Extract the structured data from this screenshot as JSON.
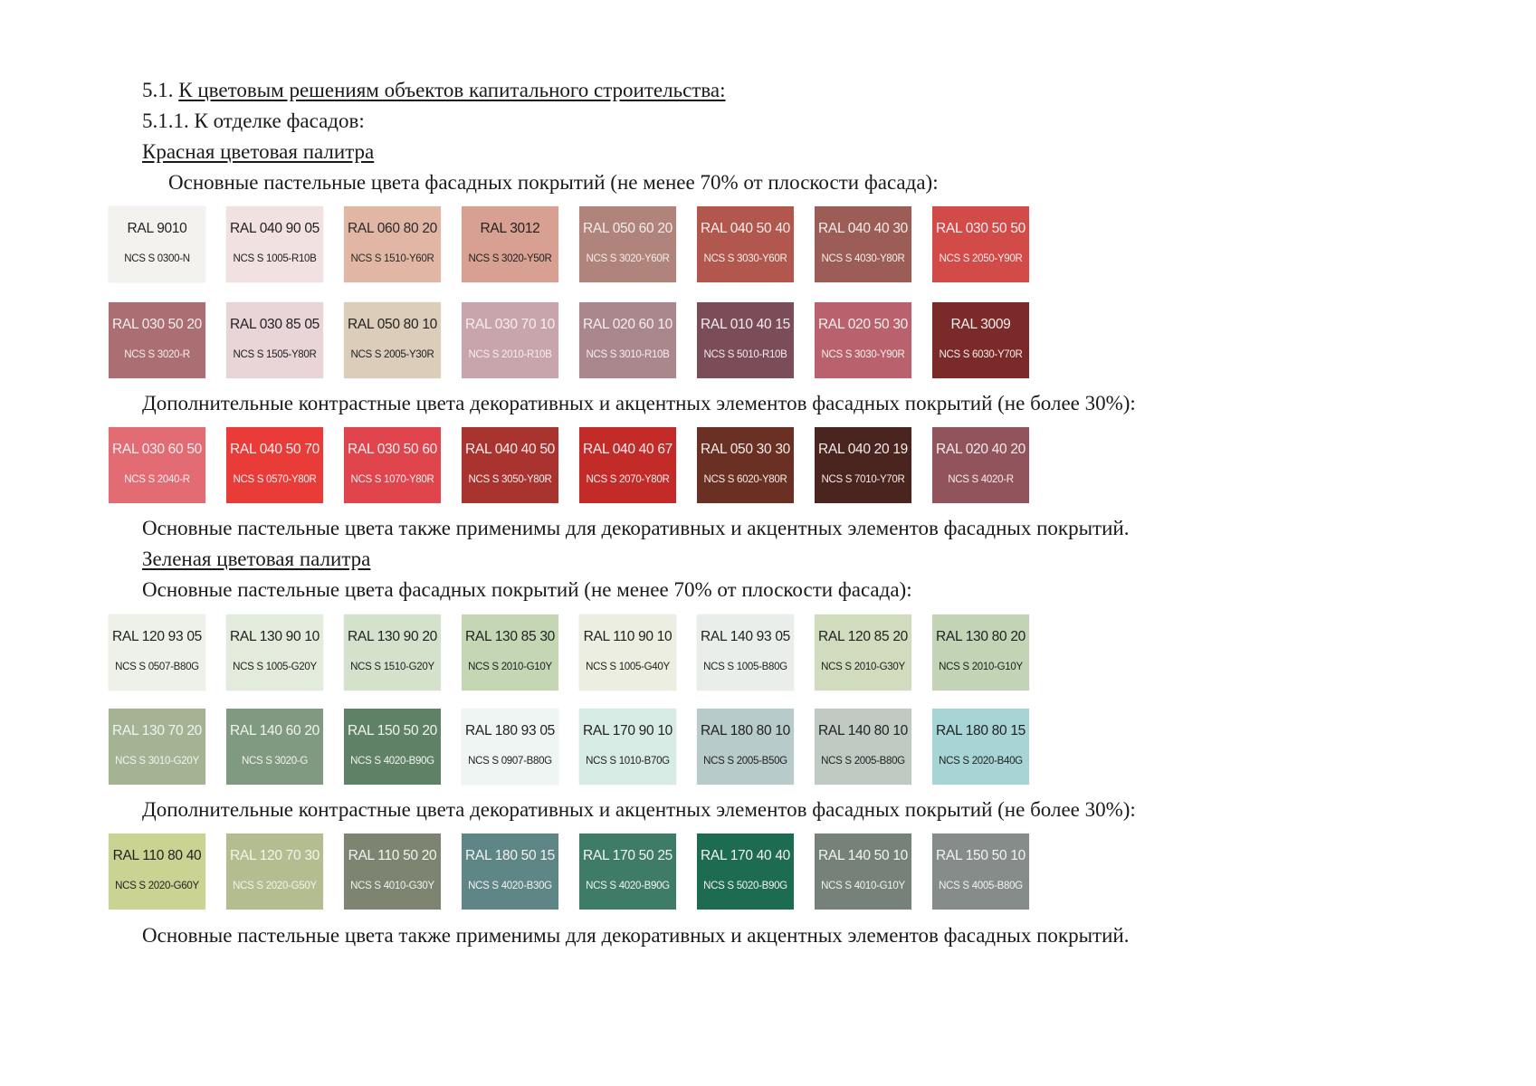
{
  "heading": {
    "num": "5.1.",
    "title": "К цветовым решениям объектов капитального строительства:"
  },
  "subheading": "5.1.1. К отделке фасадов:",
  "red": {
    "title": "Красная цветовая палитра",
    "main_text": "Основные пастельные цвета фасадных покрытий (не менее 70% от плоскости фасада):",
    "extra_text": "Дополнительные контрастные цвета декоративных и акцентных элементов фасадных покрытий (не более 30%):",
    "note": "Основные пастельные цвета также применимы для декоративных и акцентных элементов фасадных покрытий.",
    "rows": [
      [
        {
          "ral": "RAL 9010",
          "ncs": "NCS S 0300-N",
          "color": "#f3f2ef",
          "text": "#222222"
        },
        {
          "ral": "RAL 040 90 05",
          "ncs": "NCS S 1005-R10B",
          "color": "#f1e1e1",
          "text": "#222222"
        },
        {
          "ral": "RAL 060 80 20",
          "ncs": "NCS S 1510-Y60R",
          "color": "#e2b6a4",
          "text": "#2a2a2a"
        },
        {
          "ral": "RAL 3012",
          "ncs": "NCS S 3020-Y50R",
          "color": "#d8a092",
          "text": "#222222"
        },
        {
          "ral": "RAL 050 60 20",
          "ncs": "NCS S 3020-Y60R",
          "color": "#b0837b",
          "text": "#f4ecea"
        },
        {
          "ral": "RAL 040 50 40",
          "ncs": "NCS S 3030-Y60R",
          "color": "#b2574e",
          "text": "#f6eeec"
        },
        {
          "ral": "RAL 040 40 30",
          "ncs": "NCS S 4030-Y80R",
          "color": "#9b5d55",
          "text": "#f6eeec"
        },
        {
          "ral": "RAL 030 50 50",
          "ncs": "NCS S 2050-Y90R",
          "color": "#d24b48",
          "text": "#f8eeee"
        }
      ],
      [
        {
          "ral": "RAL 030 50 20",
          "ncs": "NCS S 3020-R",
          "color": "#ab6e72",
          "text": "#f6eeee"
        },
        {
          "ral": "RAL 030 85 05",
          "ncs": "NCS S 1505-Y80R",
          "color": "#e9d5d8",
          "text": "#222222"
        },
        {
          "ral": "RAL 050 80 10",
          "ncs": "NCS S 2005-Y30R",
          "color": "#dccdbb",
          "text": "#222222"
        },
        {
          "ral": "RAL 030 70 10",
          "ncs": "NCS S 2010-R10B",
          "color": "#c8a4ac",
          "text": "#f6eeee"
        },
        {
          "ral": "RAL 020 60 10",
          "ncs": "NCS S 3010-R10B",
          "color": "#a9878d",
          "text": "#f6eeee"
        },
        {
          "ral": "RAL 010 40 15",
          "ncs": "NCS S 5010-R10B",
          "color": "#7a4d59",
          "text": "#f4ecee"
        },
        {
          "ral": "RAL 020 50 30",
          "ncs": "NCS S 3030-Y90R",
          "color": "#b9626d",
          "text": "#f6eeee"
        },
        {
          "ral": "RAL 3009",
          "ncs": "NCS S 6030-Y70R",
          "color": "#7a2a28",
          "text": "#f6eeee"
        }
      ]
    ],
    "extra_row": [
      {
        "ral": "RAL 030 60 50",
        "ncs": "NCS S 2040-R",
        "color": "#e26b74",
        "text": "#fbeef0"
      },
      {
        "ral": "RAL 040 50 70",
        "ncs": "NCS S 0570-Y80R",
        "color": "#e93c38",
        "text": "#fbeeee"
      },
      {
        "ral": "RAL 030 50 60",
        "ncs": "NCS S 1070-Y80R",
        "color": "#e0454d",
        "text": "#fbeeee"
      },
      {
        "ral": "RAL 040 40 50",
        "ncs": "NCS S 3050-Y80R",
        "color": "#a9342f",
        "text": "#f8eeee"
      },
      {
        "ral": "RAL 040 40 67",
        "ncs": "NCS S 2070-Y80R",
        "color": "#c22b28",
        "text": "#f8eeee"
      },
      {
        "ral": "RAL 050 30 30",
        "ncs": "NCS S 6020-Y80R",
        "color": "#6a3024",
        "text": "#f4ecea"
      },
      {
        "ral": "RAL 040 20 19",
        "ncs": "NCS S 7010-Y70R",
        "color": "#4a241f",
        "text": "#f4ecea"
      },
      {
        "ral": "RAL 020 40 20",
        "ncs": "NCS S 4020-R",
        "color": "#92545c",
        "text": "#f4ecee"
      }
    ]
  },
  "green": {
    "title": "Зеленая цветовая палитра",
    "main_text": "Основные пастельные цвета фасадных покрытий (не менее 70% от плоскости фасада):",
    "extra_text": "Дополнительные контрастные цвета декоративных и акцентных элементов фасадных покрытий (не более 30%):",
    "note": "Основные пастельные цвета также применимы для декоративных и акцентных элементов фасадных покрытий.",
    "rows": [
      [
        {
          "ral": "RAL 120 93 05",
          "ncs": "NCS S 0507-B80G",
          "color": "#eef1e8",
          "text": "#222222"
        },
        {
          "ral": "RAL 130 90 10",
          "ncs": "NCS S 1005-G20Y",
          "color": "#e3ebdc",
          "text": "#222222"
        },
        {
          "ral": "RAL 130 90 20",
          "ncs": "NCS S 1510-G20Y",
          "color": "#d5e2cb",
          "text": "#222222"
        },
        {
          "ral": "RAL 130 85 30",
          "ncs": "NCS S 2010-G10Y",
          "color": "#c4d6b4",
          "text": "#222222"
        },
        {
          "ral": "RAL 110 90 10",
          "ncs": "NCS S 1005-G40Y",
          "color": "#ebeee0",
          "text": "#222222"
        },
        {
          "ral": "RAL 140 93 05",
          "ncs": "NCS S 1005-B80G",
          "color": "#e9eeea",
          "text": "#222222"
        },
        {
          "ral": "RAL 120 85 20",
          "ncs": "NCS S 2010-G30Y",
          "color": "#d1dbbd",
          "text": "#222222"
        },
        {
          "ral": "RAL 130 80 20",
          "ncs": "NCS S 2010-G10Y",
          "color": "#c2d3b6",
          "text": "#222222"
        }
      ],
      [
        {
          "ral": "RAL 130 70 20",
          "ncs": "NCS S 3010-G20Y",
          "color": "#a4b394",
          "text": "#f2f4ee"
        },
        {
          "ral": "RAL 140 60 20",
          "ncs": "NCS S 3020-G",
          "color": "#7f9a80",
          "text": "#f2f4ee"
        },
        {
          "ral": "RAL 150 50 20",
          "ncs": "NCS S 4020-B90G",
          "color": "#5f8267",
          "text": "#f2f4ee"
        },
        {
          "ral": "RAL 180 93 05",
          "ncs": "NCS S 0907-B80G",
          "color": "#eef5f2",
          "text": "#222222"
        },
        {
          "ral": "RAL 170 90 10",
          "ncs": "NCS S 1010-B70G",
          "color": "#d8ece6",
          "text": "#222222"
        },
        {
          "ral": "RAL 180 80 10",
          "ncs": "NCS S 2005-B50G",
          "color": "#b8cbcb",
          "text": "#222222"
        },
        {
          "ral": "RAL 140 80 10",
          "ncs": "NCS S 2005-B80G",
          "color": "#bfcbc2",
          "text": "#222222"
        },
        {
          "ral": "RAL 180 80 15",
          "ncs": "NCS S 2020-B40G",
          "color": "#a7d5d6",
          "text": "#222222"
        }
      ]
    ],
    "extra_row": [
      {
        "ral": "RAL 110 80 40",
        "ncs": "NCS S 2020-G60Y",
        "color": "#cbd392",
        "text": "#222222"
      },
      {
        "ral": "RAL 120 70 30",
        "ncs": "NCS S 2020-G50Y",
        "color": "#b3bd8f",
        "text": "#f2f4ee"
      },
      {
        "ral": "RAL 110 50 20",
        "ncs": "NCS S 4010-G30Y",
        "color": "#7d8572",
        "text": "#f2f4ee"
      },
      {
        "ral": "RAL 180 50 15",
        "ncs": "NCS S 4020-B30G",
        "color": "#5f8687",
        "text": "#f2f4ee"
      },
      {
        "ral": "RAL 170 50 25",
        "ncs": "NCS S 4020-B90G",
        "color": "#3f7c68",
        "text": "#f2f4ee"
      },
      {
        "ral": "RAL 170 40 40",
        "ncs": "NCS S 5020-B90G",
        "color": "#1d6b50",
        "text": "#f2f4ee"
      },
      {
        "ral": "RAL 140 50 10",
        "ncs": "NCS S 4010-G10Y",
        "color": "#76817a",
        "text": "#f2f4ee"
      },
      {
        "ral": "RAL 150 50 10",
        "ncs": "NCS S 4005-B80G",
        "color": "#868c89",
        "text": "#f2f4ee"
      }
    ]
  }
}
